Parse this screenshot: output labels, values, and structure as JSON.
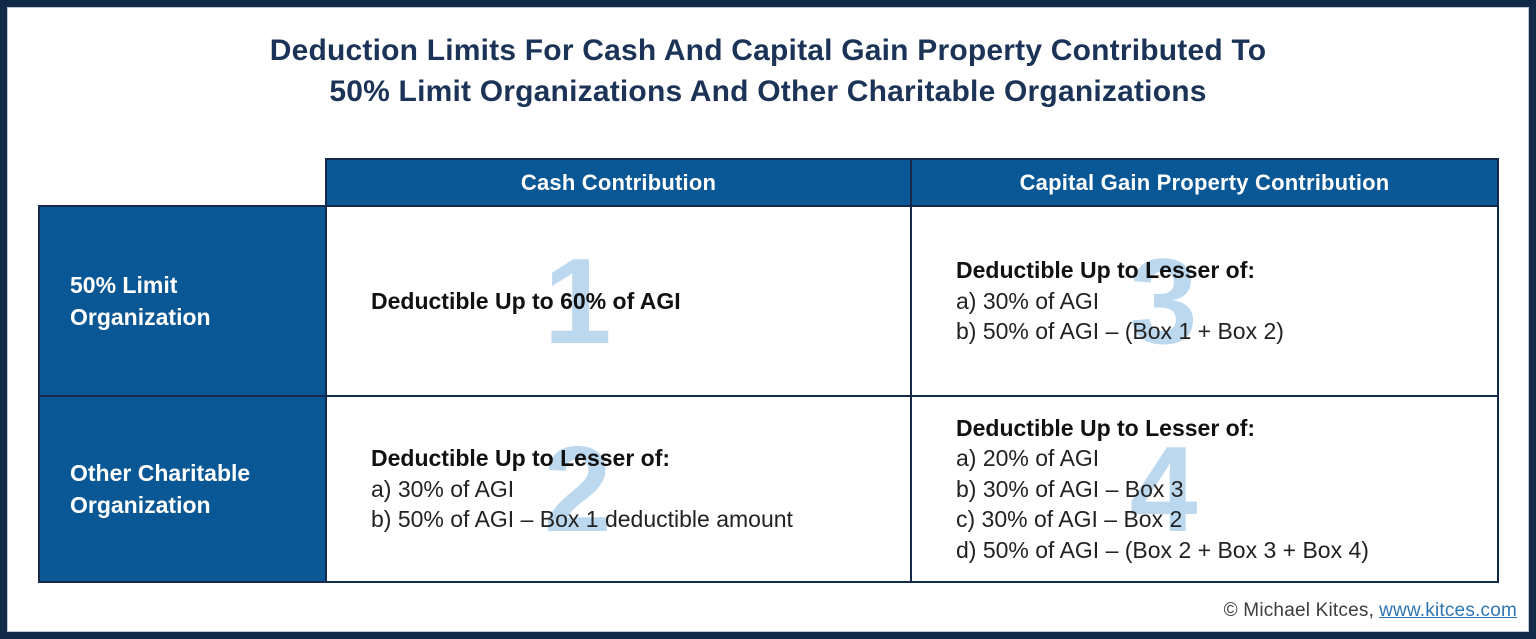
{
  "title": {
    "line1": "Deduction Limits For Cash And Capital Gain Property Contributed To",
    "line2": "50% Limit Organizations And Other Charitable Organizations"
  },
  "table": {
    "column_headers": [
      "Cash Contribution",
      "Capital Gain Property Contribution"
    ],
    "rows": [
      {
        "header": "50% Limit Organization",
        "cells": [
          {
            "box_number": "1",
            "lead": "Deductible Up to 60% of AGI",
            "items": []
          },
          {
            "box_number": "3",
            "lead": "Deductible Up to Lesser of:",
            "items": [
              "a) 30% of AGI",
              "b) 50% of AGI – (Box 1 + Box 2)"
            ]
          }
        ]
      },
      {
        "header": "Other Charitable Organization",
        "cells": [
          {
            "box_number": "2",
            "lead": "Deductible Up to Lesser of:",
            "items": [
              "a) 30% of AGI",
              "b) 50% of AGI – Box 1 deductible amount"
            ]
          },
          {
            "box_number": "4",
            "lead": "Deductible Up to Lesser of:",
            "items": [
              "a) 20% of AGI",
              "b) 30% of AGI – Box 3",
              "c) 30% of AGI – Box 2",
              "d) 50% of AGI – (Box 2 + Box 3 + Box 4)"
            ]
          }
        ]
      }
    ]
  },
  "footer": {
    "copyright_text": "© Michael Kitces,",
    "link_text": "www.kitces.com"
  },
  "colors": {
    "accent_blue": "#0A5795",
    "frame_navy": "#12294A",
    "title_navy": "#1B3357",
    "watermark_blue": "#BCD8EE",
    "link_blue": "#2E76B5"
  }
}
